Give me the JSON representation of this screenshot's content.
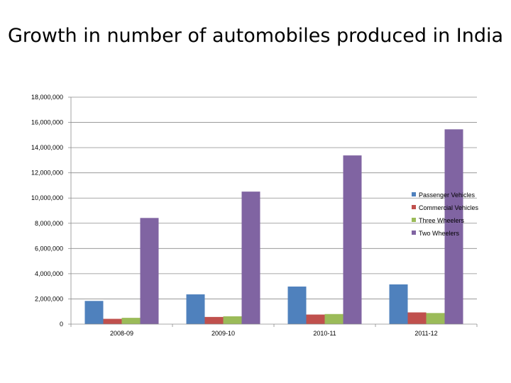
{
  "chart_data": {
    "type": "bar",
    "title": "Growth in number of automobiles produced in India",
    "xlabel": "",
    "ylabel": "",
    "categories": [
      "2008-09",
      "2009-10",
      "2010-11",
      "2011-12"
    ],
    "ylim": [
      0,
      18000000
    ],
    "yticks": [
      "0",
      "2,000,000",
      "4,000,000",
      "6,000,000",
      "8,000,000",
      "10,000,000",
      "12,000,000",
      "14,000,000",
      "16,000,000",
      "18,000,000"
    ],
    "grid": true,
    "legend": "right",
    "series": [
      {
        "name": "Passenger Vehicles",
        "color": "#4f81bd",
        "values": [
          1840000,
          2360000,
          2980000,
          3150000
        ]
      },
      {
        "name": "Commercial Vehicles",
        "color": "#c0504d",
        "values": [
          420000,
          570000,
          760000,
          930000
        ]
      },
      {
        "name": "Three Wheelers",
        "color": "#9bbb59",
        "values": [
          500000,
          620000,
          800000,
          880000
        ]
      },
      {
        "name": "Two Wheelers",
        "color": "#8064a2",
        "values": [
          8420000,
          10510000,
          13380000,
          15450000
        ]
      }
    ]
  }
}
